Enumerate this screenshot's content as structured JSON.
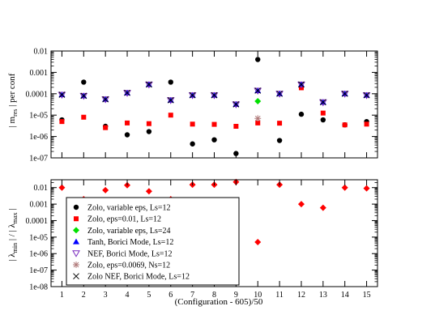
{
  "chart_data": [
    {
      "type": "scatter",
      "panel": "top",
      "y_scale": "log",
      "ylabel": "| m_res | per conf",
      "ylabel_parts": {
        "pre": "| m",
        "sub": "res",
        "post": " | per conf"
      },
      "ylim": [
        1e-07,
        0.01
      ],
      "y_ticks": [
        "1e-07",
        "1e-06",
        "1e-05",
        "0.0001",
        "0.001",
        "0.01"
      ],
      "x": [
        1,
        2,
        3,
        4,
        5,
        6,
        7,
        8,
        9,
        10,
        11,
        12,
        13,
        14,
        15
      ],
      "xlim": [
        0.5,
        15.5
      ],
      "series": [
        {
          "key": "zolo_var",
          "marker": "circle",
          "color": "#000000",
          "points": [
            [
              1,
              6e-06
            ],
            [
              2,
              0.00035
            ],
            [
              3,
              3e-06
            ],
            [
              4,
              1.2e-06
            ],
            [
              5,
              1.7e-06
            ],
            [
              6,
              0.00035
            ],
            [
              7,
              4.5e-07
            ],
            [
              8,
              7e-07
            ],
            [
              9,
              1.6e-07
            ],
            [
              10,
              0.004
            ],
            [
              11,
              6.5e-07
            ],
            [
              12,
              1.1e-05
            ],
            [
              13,
              6e-06
            ],
            [
              14,
              3.5e-06
            ],
            [
              15,
              5e-06
            ]
          ]
        },
        {
          "key": "zolo_eps001",
          "marker": "square",
          "color": "#ff0000",
          "points": [
            [
              1,
              5e-06
            ],
            [
              2,
              8e-06
            ],
            [
              3,
              2.6e-06
            ],
            [
              4,
              4.3e-06
            ],
            [
              5,
              4e-06
            ],
            [
              6,
              1e-05
            ],
            [
              7,
              3.8e-06
            ],
            [
              8,
              3.7e-06
            ],
            [
              9,
              3e-06
            ],
            [
              10,
              4.3e-06
            ],
            [
              11,
              4.2e-06
            ],
            [
              12,
              0.00019
            ],
            [
              13,
              1.25e-05
            ],
            [
              14,
              3.5e-06
            ],
            [
              15,
              3.8e-06
            ]
          ]
        },
        {
          "key": "zolo_var24",
          "marker": "diamond",
          "color": "#00e000",
          "points": [
            [
              10,
              4.5e-05
            ]
          ]
        },
        {
          "key": "tanh",
          "marker": "triangle-up",
          "color": "#0000ff",
          "points": [
            [
              1,
              9e-05
            ],
            [
              2,
              8e-05
            ],
            [
              3,
              5.5e-05
            ],
            [
              4,
              0.00011
            ],
            [
              5,
              0.00027
            ],
            [
              6,
              5e-05
            ],
            [
              7,
              8.5e-05
            ],
            [
              8,
              8.5e-05
            ],
            [
              9,
              3.2e-05
            ],
            [
              10,
              0.00014
            ],
            [
              11,
              0.0001
            ],
            [
              12,
              0.00027
            ],
            [
              13,
              4e-05
            ],
            [
              14,
              0.0001
            ],
            [
              15,
              8.5e-05
            ]
          ]
        },
        {
          "key": "nef",
          "marker": "triangle-down",
          "color": "#7a2bbf",
          "points": [
            [
              1,
              9e-05
            ],
            [
              2,
              8e-05
            ],
            [
              3,
              5.5e-05
            ],
            [
              4,
              0.00011
            ],
            [
              5,
              0.00027
            ],
            [
              6,
              5e-05
            ],
            [
              7,
              8.5e-05
            ],
            [
              8,
              8.5e-05
            ],
            [
              9,
              3.2e-05
            ],
            [
              10,
              0.00014
            ],
            [
              11,
              0.0001
            ],
            [
              12,
              0.00027
            ],
            [
              13,
              4e-05
            ],
            [
              14,
              0.0001
            ],
            [
              15,
              8.5e-05
            ]
          ]
        },
        {
          "key": "zolo_eps00069",
          "marker": "star",
          "color": "#b07a7a",
          "points": [
            [
              10,
              7e-06
            ]
          ]
        },
        {
          "key": "zolo_nef",
          "marker": "x",
          "color": "#000000",
          "points": [
            [
              1,
              9e-05
            ],
            [
              2,
              8e-05
            ],
            [
              3,
              5.5e-05
            ],
            [
              4,
              0.00011
            ],
            [
              5,
              0.00027
            ],
            [
              6,
              5e-05
            ],
            [
              7,
              8.5e-05
            ],
            [
              8,
              8.5e-05
            ],
            [
              9,
              3.2e-05
            ],
            [
              10,
              0.00014
            ],
            [
              11,
              0.0001
            ],
            [
              12,
              0.00027
            ],
            [
              13,
              4e-05
            ],
            [
              14,
              0.0001
            ],
            [
              15,
              8.5e-05
            ]
          ]
        }
      ]
    },
    {
      "type": "scatter",
      "panel": "bottom",
      "y_scale": "log",
      "ylabel": "| λ_min | / | λ_max |",
      "ylabel_parts": {
        "pre": "| λ",
        "sub1": "min",
        "mid": " | / | λ",
        "sub2": "max",
        "post": " |"
      },
      "ylim": [
        1e-08,
        0.03
      ],
      "y_ticks": [
        "1e-08",
        "1e-07",
        "1e-06",
        "1e-05",
        "0.0001",
        "0.001",
        "0.01"
      ],
      "xlabel": "(Configuration - 605)/50",
      "x_ticks": [
        "1",
        "2",
        "3",
        "4",
        "5",
        "6",
        "7",
        "8",
        "9",
        "10",
        "11",
        "12",
        "13",
        "14",
        "15"
      ],
      "xlim": [
        0.5,
        15.5
      ],
      "series": [
        {
          "key": "zolo_eps001",
          "marker": "diamond",
          "color": "#ff0000",
          "points": [
            [
              1,
              0.01
            ],
            [
              2,
              0.002
            ],
            [
              3,
              0.007
            ],
            [
              4,
              0.014
            ],
            [
              5,
              0.006
            ],
            [
              6,
              0.002
            ],
            [
              7,
              0.015
            ],
            [
              8,
              0.015
            ],
            [
              9,
              0.022
            ],
            [
              10,
              5e-06
            ],
            [
              11,
              0.015
            ],
            [
              12,
              0.001
            ],
            [
              13,
              0.0006
            ],
            [
              14,
              0.01
            ],
            [
              15,
              0.009
            ]
          ]
        }
      ],
      "legend": {
        "placement": "lower-left",
        "entries": [
          {
            "key": "zolo_var",
            "label": "Zolo, variable eps, Ls=12",
            "marker": "circle",
            "color": "#000000"
          },
          {
            "key": "zolo_eps001",
            "label": "Zolo, eps=0.01, Ls=12",
            "marker": "square",
            "color": "#ff0000"
          },
          {
            "key": "zolo_var24",
            "label": "Zolo, variable eps, Ls=24",
            "marker": "diamond",
            "color": "#00e000"
          },
          {
            "key": "tanh",
            "label": "Tanh, Borici Mode, Ls=12",
            "marker": "triangle-up",
            "color": "#0000ff"
          },
          {
            "key": "nef",
            "label": "NEF, Borici Mode, Ls=12",
            "marker": "triangle-down-open",
            "color": "#7a2bbf"
          },
          {
            "key": "zolo_eps00069",
            "label": "Zolo, eps=0.0069, Ns=12",
            "marker": "star",
            "color": "#b07a7a"
          },
          {
            "key": "zolo_nef",
            "label": "Zolo NEF, Borici Mode, Ls=12",
            "marker": "x",
            "color": "#000000"
          }
        ]
      }
    }
  ]
}
